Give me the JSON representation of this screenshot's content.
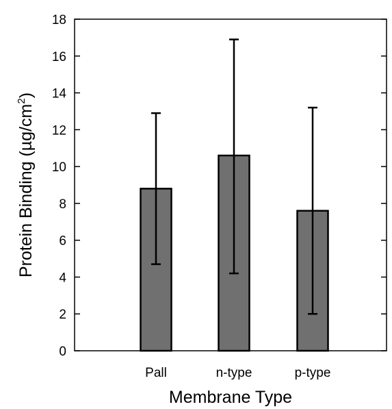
{
  "chart_data": {
    "type": "bar",
    "categories": [
      "Pall",
      "n-type",
      "p-type"
    ],
    "series": [
      {
        "values": [
          8.8,
          10.6,
          7.6
        ],
        "error_low": [
          4.7,
          4.2,
          2.0
        ],
        "error_high": [
          12.9,
          16.9,
          13.2
        ]
      }
    ],
    "xlabel": "Membrane Type",
    "ylabel": "Protein Binding (µg/cm",
    "ylabel_superscript": "2",
    "ylabel_suffix": ")",
    "ylim": [
      0,
      18
    ],
    "yticks": [
      0,
      2,
      4,
      6,
      8,
      10,
      12,
      14,
      16,
      18
    ],
    "grid": false,
    "bar_color": "#707070",
    "error_bar_color": "#000000"
  }
}
